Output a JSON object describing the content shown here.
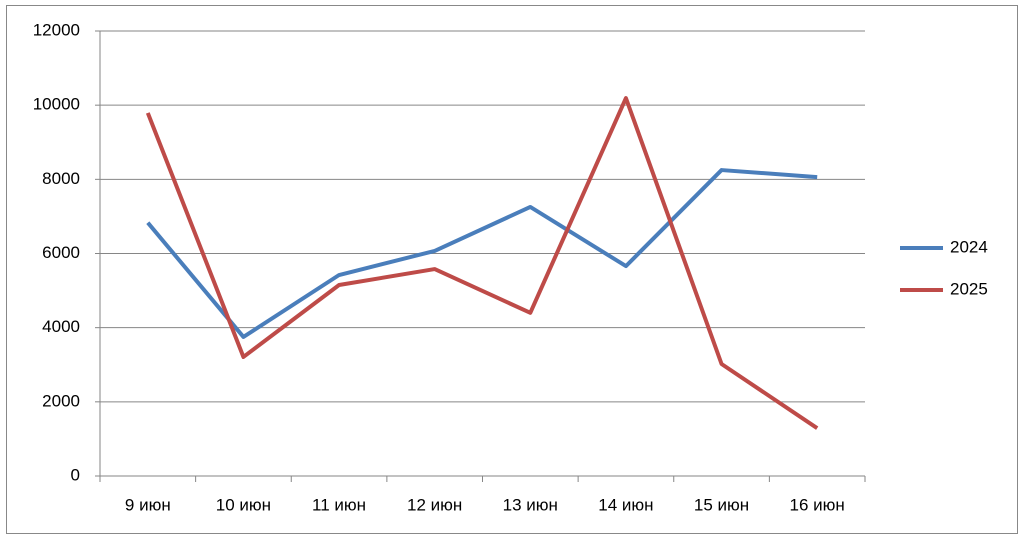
{
  "chart_data": {
    "type": "line",
    "categories": [
      "9 июн",
      "10 июн",
      "11 июн",
      "12 июн",
      "13 июн",
      "14 июн",
      "15 июн",
      "16 июн"
    ],
    "series": [
      {
        "name": "2024",
        "color": "#4a7ebb",
        "values": [
          6830,
          3750,
          5420,
          6070,
          7255,
          5660,
          8250,
          8060
        ]
      },
      {
        "name": "2025",
        "color": "#be4b48",
        "values": [
          9790,
          3210,
          5150,
          5580,
          4400,
          10190,
          3020,
          1290
        ]
      }
    ],
    "ylim": [
      0,
      12000
    ],
    "yticks": [
      0,
      2000,
      4000,
      6000,
      8000,
      10000,
      12000
    ],
    "grid": true,
    "legend": "right"
  }
}
